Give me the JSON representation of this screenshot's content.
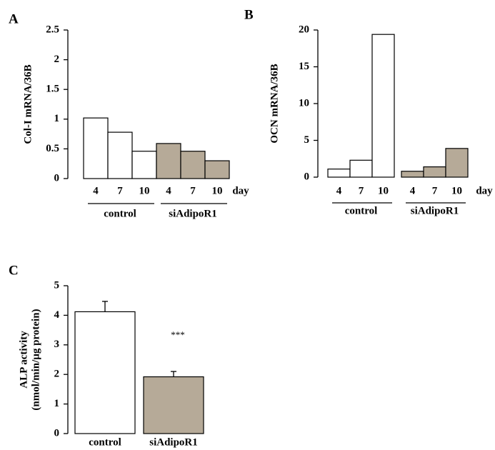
{
  "chart_data": [
    {
      "type": "bar",
      "panel": "A",
      "y_label": "Col-I mRNA/36B",
      "x_unit": "day",
      "ylim": [
        0,
        2.5
      ],
      "yticks": [
        0,
        0.5,
        1,
        1.5,
        2,
        2.5
      ],
      "groups": [
        {
          "name": "control",
          "color": "#ffffff",
          "categories": [
            "4",
            "7",
            "10"
          ],
          "values": [
            1.02,
            0.78,
            0.46
          ]
        },
        {
          "name": "siAdipoR1",
          "color": "#b6aa98",
          "categories": [
            "4",
            "7",
            "10"
          ],
          "values": [
            0.59,
            0.46,
            0.3
          ]
        }
      ]
    },
    {
      "type": "bar",
      "panel": "B",
      "y_label": "OCN mRNA/36B",
      "x_unit": "day",
      "ylim": [
        0,
        20
      ],
      "yticks": [
        0,
        5,
        10,
        15,
        20
      ],
      "groups": [
        {
          "name": "control",
          "color": "#ffffff",
          "categories": [
            "4",
            "7",
            "10"
          ],
          "values": [
            1.1,
            2.3,
            19.4
          ]
        },
        {
          "name": "siAdipoR1",
          "color": "#b6aa98",
          "categories": [
            "4",
            "7",
            "10"
          ],
          "values": [
            0.8,
            1.4,
            3.9
          ]
        }
      ]
    },
    {
      "type": "bar",
      "panel": "C",
      "y_label": [
        "ALP activity",
        "(nmol/min/µg protein)"
      ],
      "ylim": [
        0,
        5
      ],
      "yticks": [
        0,
        1,
        2,
        3,
        4,
        5
      ],
      "groups": [
        {
          "name": "control",
          "color": "#ffffff",
          "values": [
            4.12
          ],
          "errors": [
            0.35
          ]
        },
        {
          "name": "siAdipoR1",
          "color": "#b6aa98",
          "values": [
            1.92
          ],
          "errors": [
            0.18
          ],
          "annotation": "***"
        }
      ]
    }
  ]
}
